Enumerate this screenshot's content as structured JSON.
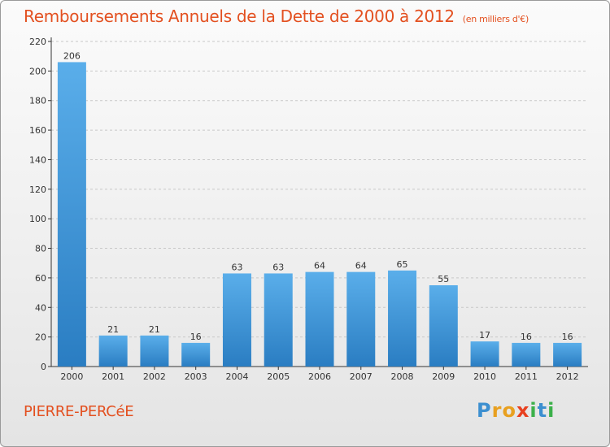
{
  "title": "Remboursements Annuels de la Dette de 2000 à 2012",
  "subtitle": "(en milliers d'€)",
  "place": "PIERRE-PERCéE",
  "logo": {
    "letters": [
      "P",
      "r",
      "o",
      "x",
      "i",
      "t",
      "i"
    ],
    "colors": [
      "#3c8fd0",
      "#e8a020",
      "#e8a020",
      "#e84020",
      "#3cb04a",
      "#3c8fd0",
      "#3cb04a"
    ]
  },
  "colors": {
    "bar_light": "#5aaeea",
    "bar_dark": "#2a7dc2",
    "grid": "#c8c8c8",
    "axis": "#333333",
    "text": "#333333"
  },
  "chart_data": {
    "type": "bar",
    "categories": [
      "2000",
      "2001",
      "2002",
      "2003",
      "2004",
      "2005",
      "2006",
      "2007",
      "2008",
      "2009",
      "2010",
      "2011",
      "2012"
    ],
    "values": [
      206,
      21,
      21,
      16,
      63,
      63,
      64,
      64,
      65,
      55,
      17,
      16,
      16
    ],
    "value_labels": [
      "206",
      "21",
      "21",
      "16",
      "63",
      "63",
      "64",
      "64",
      "65",
      "55",
      "17",
      "16",
      "16"
    ],
    "ylim": [
      0,
      220
    ],
    "yticks": [
      "0",
      "20",
      "40",
      "60",
      "80",
      "100",
      "120",
      "140",
      "160",
      "180",
      "200",
      "220"
    ],
    "grid": true
  }
}
